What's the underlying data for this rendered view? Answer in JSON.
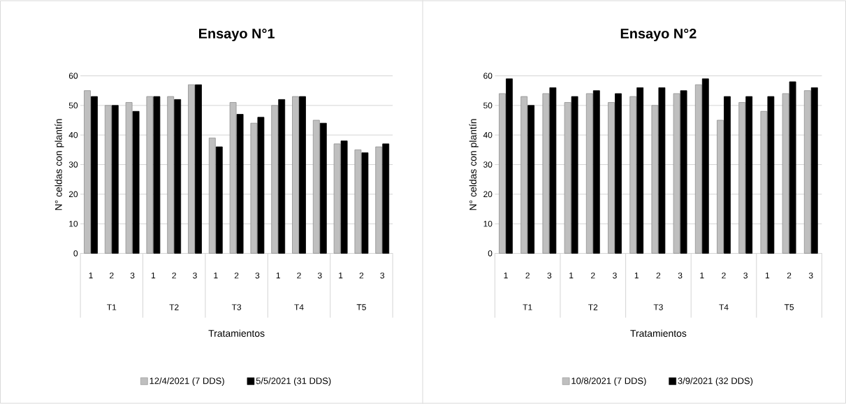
{
  "chart_data": [
    {
      "type": "bar",
      "title": "Ensayo N°1",
      "xlabel": "Tratamientos",
      "ylabel": "N° celdas con plantín",
      "categories": [
        "1",
        "2",
        "3",
        "1",
        "2",
        "3",
        "1",
        "2",
        "3",
        "1",
        "2",
        "3",
        "1",
        "2",
        "3"
      ],
      "annotations": [
        "T1",
        "T2",
        "T3",
        "T4",
        "T5"
      ],
      "series": [
        {
          "name": "12/4/2021 (7 DDS)",
          "color": "#bfbfbf",
          "values": [
            55,
            50,
            51,
            53,
            53,
            57,
            39,
            51,
            44,
            50,
            53,
            45,
            37,
            35,
            36
          ]
        },
        {
          "name": "5/5/2021 (31 DDS)",
          "color": "#000000",
          "values": [
            53,
            50,
            48,
            53,
            52,
            57,
            36,
            47,
            46,
            52,
            53,
            44,
            38,
            34,
            37
          ]
        }
      ],
      "ylim": [
        0,
        60
      ],
      "yticks": [
        0,
        10,
        20,
        30,
        40,
        50,
        60
      ],
      "grid": "y",
      "legend": "bottom"
    },
    {
      "type": "bar",
      "title": "Ensayo N°2",
      "xlabel": "Tratamientos",
      "ylabel": "N° celdas con plantín",
      "categories": [
        "1",
        "2",
        "3",
        "1",
        "2",
        "3",
        "1",
        "2",
        "3",
        "1",
        "2",
        "3",
        "1",
        "2",
        "3"
      ],
      "annotations": [
        "T1",
        "T2",
        "T3",
        "T4",
        "T5"
      ],
      "series": [
        {
          "name": "10/8/2021 (7 DDS)",
          "color": "#bfbfbf",
          "values": [
            54,
            53,
            54,
            51,
            54,
            51,
            53,
            50,
            54,
            57,
            45,
            51,
            48,
            54,
            55
          ]
        },
        {
          "name": "3/9/2021 (32 DDS)",
          "color": "#000000",
          "values": [
            59,
            50,
            56,
            53,
            55,
            54,
            56,
            56,
            55,
            59,
            53,
            53,
            53,
            58,
            56
          ]
        }
      ],
      "ylim": [
        0,
        60
      ],
      "yticks": [
        0,
        10,
        20,
        30,
        40,
        50,
        60
      ],
      "grid": "y",
      "legend": "bottom"
    }
  ]
}
